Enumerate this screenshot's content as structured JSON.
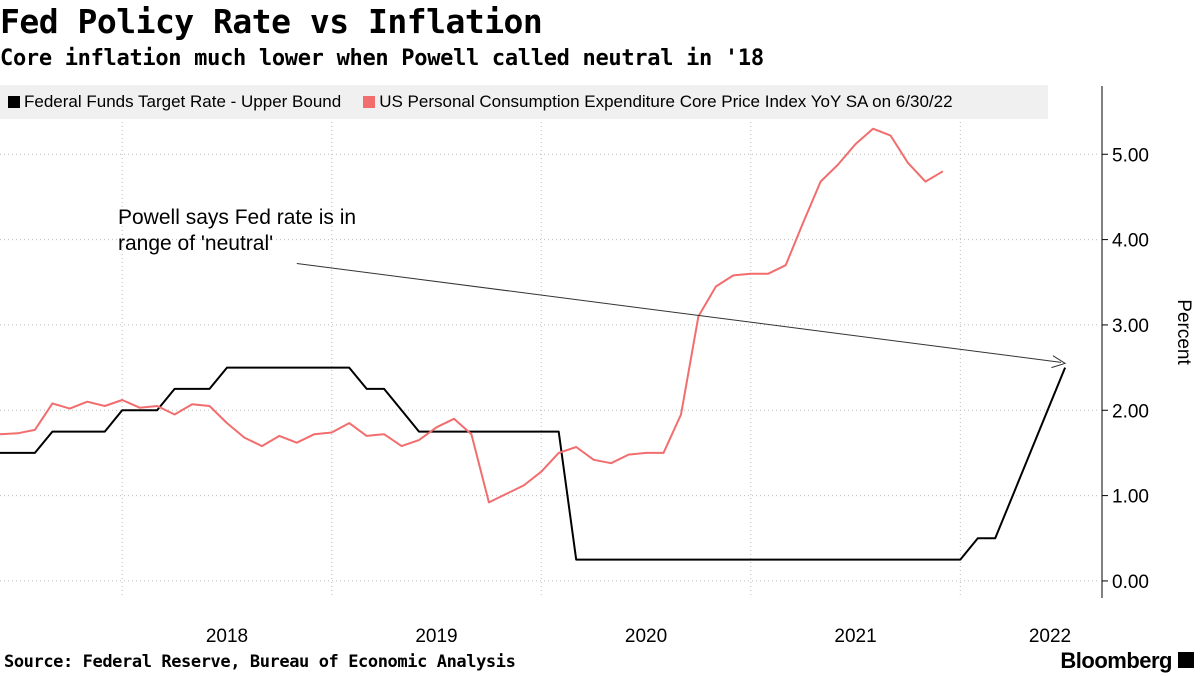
{
  "title": "Fed Policy Rate vs Inflation",
  "subtitle": "Core inflation much lower when Powell called neutral in '18",
  "source": "Source: Federal Reserve, Bureau of Economic Analysis",
  "brand": "Bloomberg",
  "colors": {
    "fed": "#000000",
    "pce": "#f26d6d",
    "legend_bg": "#f0f0f0"
  },
  "chart_data": {
    "type": "line",
    "title": "Fed Policy Rate vs Inflation",
    "subtitle": "Core inflation much lower when Powell called neutral in '18",
    "ylabel": "Percent",
    "ylim": [
      -0.2,
      5.8
    ],
    "xlim": [
      "2017-06",
      "2022-09"
    ],
    "yticks": [
      "0.00",
      "1.00",
      "2.00",
      "3.00",
      "4.00",
      "5.00"
    ],
    "xticks": [
      "2018",
      "2019",
      "2020",
      "2021",
      "2022"
    ],
    "legend_position": "top",
    "grid": true,
    "series": [
      {
        "name": "Federal Funds Target Rate - Upper Bound",
        "color": "#000000",
        "points": [
          [
            "2017-06",
            1.5
          ],
          [
            "2017-08",
            1.5
          ],
          [
            "2017-09",
            1.75
          ],
          [
            "2017-11",
            1.75
          ],
          [
            "2017-12",
            1.75
          ],
          [
            "2018-01",
            2.0
          ],
          [
            "2018-03",
            2.0
          ],
          [
            "2018-04",
            2.25
          ],
          [
            "2018-06",
            2.25
          ],
          [
            "2018-07",
            2.5
          ],
          [
            "2018-08",
            2.5
          ],
          [
            "2019-02",
            2.5
          ],
          [
            "2019-03",
            2.25
          ],
          [
            "2019-04",
            2.25
          ],
          [
            "2019-05",
            2.0
          ],
          [
            "2019-06",
            1.75
          ],
          [
            "2019-12",
            1.75
          ],
          [
            "2020-02",
            1.75
          ],
          [
            "2020-03",
            0.25
          ],
          [
            "2021-11",
            0.25
          ],
          [
            "2022-01",
            0.25
          ],
          [
            "2022-02",
            0.5
          ],
          [
            "2022-03",
            0.5
          ],
          [
            "2022-04",
            1.0
          ],
          [
            "2022-06",
            2.0
          ],
          [
            "2022-07",
            2.5
          ]
        ]
      },
      {
        "name": "US Personal Consumption Expenditure Core Price Index YoY SA on 6/30/22",
        "color": "#f26d6d",
        "points": [
          [
            "2017-06",
            1.72
          ],
          [
            "2017-07",
            1.73
          ],
          [
            "2017-08",
            1.77
          ],
          [
            "2017-09",
            2.08
          ],
          [
            "2017-10",
            2.02
          ],
          [
            "2017-11",
            2.1
          ],
          [
            "2017-12",
            2.05
          ],
          [
            "2018-01",
            2.12
          ],
          [
            "2018-02",
            2.03
          ],
          [
            "2018-03",
            2.05
          ],
          [
            "2018-04",
            1.95
          ],
          [
            "2018-05",
            2.07
          ],
          [
            "2018-06",
            2.05
          ],
          [
            "2018-07",
            1.85
          ],
          [
            "2018-08",
            1.68
          ],
          [
            "2018-09",
            1.58
          ],
          [
            "2018-10",
            1.7
          ],
          [
            "2018-11",
            1.62
          ],
          [
            "2018-12",
            1.72
          ],
          [
            "2019-01",
            1.74
          ],
          [
            "2019-02",
            1.85
          ],
          [
            "2019-03",
            1.7
          ],
          [
            "2019-04",
            1.72
          ],
          [
            "2019-05",
            1.58
          ],
          [
            "2019-06",
            1.65
          ],
          [
            "2019-07",
            1.8
          ],
          [
            "2019-08",
            1.9
          ],
          [
            "2019-09",
            1.72
          ],
          [
            "2019-10",
            0.92
          ],
          [
            "2019-11",
            1.02
          ],
          [
            "2019-12",
            1.12
          ],
          [
            "2020-01",
            1.28
          ],
          [
            "2020-02",
            1.5
          ],
          [
            "2020-03",
            1.57
          ],
          [
            "2020-04",
            1.42
          ],
          [
            "2020-05",
            1.38
          ],
          [
            "2020-06",
            1.48
          ],
          [
            "2020-07",
            1.5
          ],
          [
            "2020-08",
            1.5
          ],
          [
            "2020-09",
            1.95
          ],
          [
            "2020-10",
            3.1
          ],
          [
            "2020-11",
            3.45
          ],
          [
            "2020-12",
            3.58
          ],
          [
            "2021-01",
            3.6
          ],
          [
            "2021-02",
            3.6
          ],
          [
            "2021-03",
            3.7
          ],
          [
            "2021-04",
            4.2
          ],
          [
            "2021-05",
            4.68
          ],
          [
            "2021-06",
            4.88
          ],
          [
            "2021-07",
            5.12
          ],
          [
            "2021-08",
            5.3
          ],
          [
            "2021-09",
            5.22
          ],
          [
            "2021-10",
            4.9
          ],
          [
            "2021-11",
            4.68
          ],
          [
            "2021-12",
            4.8
          ]
        ]
      }
    ],
    "annotations": [
      {
        "text_lines": [
          "Powell says Fed rate is in",
          "range of 'neutral'"
        ],
        "arrow_from": [
          "2018-11",
          3.72
        ],
        "arrow_to": [
          "2022-07",
          2.55
        ]
      }
    ]
  }
}
